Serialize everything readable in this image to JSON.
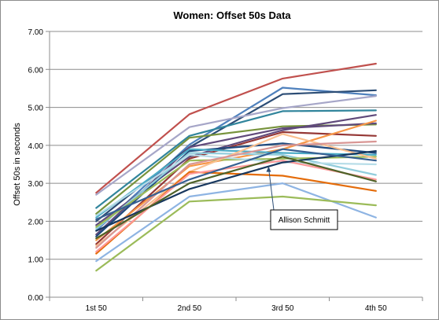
{
  "chart_data": {
    "type": "line",
    "title": "Women: Offset 50s Data",
    "xlabel": "",
    "ylabel": "Offset 50s in seconds",
    "categories": [
      "1st 50",
      "2nd 50",
      "3rd 50",
      "4th 50"
    ],
    "ylim": [
      0,
      7
    ],
    "ytick_labels": [
      "0.00",
      "1.00",
      "2.00",
      "3.00",
      "4.00",
      "5.00",
      "6.00",
      "7.00"
    ],
    "grid": "horizontal",
    "legend": "none",
    "annotation": {
      "text": "Allison Schmitt",
      "series_index": 19
    },
    "series": [
      {
        "color": "#c0504d",
        "values": [
          2.75,
          4.82,
          5.76,
          6.15
        ]
      },
      {
        "color": "#4f81bd",
        "values": [
          1.75,
          4.02,
          5.52,
          5.32
        ]
      },
      {
        "color": "#2c4d75",
        "values": [
          2.0,
          3.95,
          5.35,
          5.45
        ]
      },
      {
        "color": "#a6a6c8",
        "values": [
          2.7,
          4.48,
          4.98,
          5.3
        ]
      },
      {
        "color": "#31859c",
        "values": [
          2.35,
          4.25,
          4.9,
          4.92
        ]
      },
      {
        "color": "#77933c",
        "values": [
          2.2,
          4.2,
          4.5,
          4.55
        ]
      },
      {
        "color": "#604a7b",
        "values": [
          1.65,
          3.95,
          4.45,
          4.58
        ]
      },
      {
        "color": "#5f497a",
        "values": [
          1.9,
          3.7,
          4.4,
          4.8
        ]
      },
      {
        "color": "#953735",
        "values": [
          1.4,
          3.65,
          4.35,
          4.25
        ]
      },
      {
        "color": "#f79646",
        "values": [
          1.5,
          3.45,
          3.9,
          4.65
        ]
      },
      {
        "color": "#1f497d",
        "values": [
          1.6,
          3.85,
          4.05,
          3.8
        ]
      },
      {
        "color": "#4bacc6",
        "values": [
          2.1,
          3.9,
          3.8,
          3.75
        ]
      },
      {
        "color": "#92cddc",
        "values": [
          1.8,
          3.8,
          3.75,
          3.22
        ]
      },
      {
        "color": "#9bbb59",
        "values": [
          1.85,
          3.6,
          3.65,
          3.7
        ]
      },
      {
        "color": "#b7dde8",
        "values": [
          2.15,
          3.75,
          3.55,
          3.5
        ]
      },
      {
        "color": "#fac090",
        "values": [
          1.35,
          3.3,
          4.3,
          3.65
        ]
      },
      {
        "color": "#e46c0a",
        "values": [
          1.15,
          3.3,
          3.2,
          2.8
        ]
      },
      {
        "color": "#ff9999",
        "values": [
          1.2,
          3.25,
          3.6,
          3.1
        ]
      },
      {
        "color": "#d99694",
        "values": [
          1.3,
          3.5,
          4.0,
          4.1
        ]
      },
      {
        "color": "#17375e",
        "values": [
          1.75,
          2.85,
          3.55,
          3.85
        ]
      },
      {
        "color": "#8eb4e3",
        "values": [
          0.95,
          2.65,
          3.0,
          2.1
        ]
      },
      {
        "color": "#9bbb59",
        "values": [
          0.7,
          2.52,
          2.65,
          2.42
        ]
      },
      {
        "color": "#4f6228",
        "values": [
          1.55,
          3.0,
          3.7,
          3.05
        ]
      },
      {
        "color": "#366092",
        "values": [
          2.05,
          3.1,
          3.9,
          3.6
        ]
      }
    ]
  }
}
